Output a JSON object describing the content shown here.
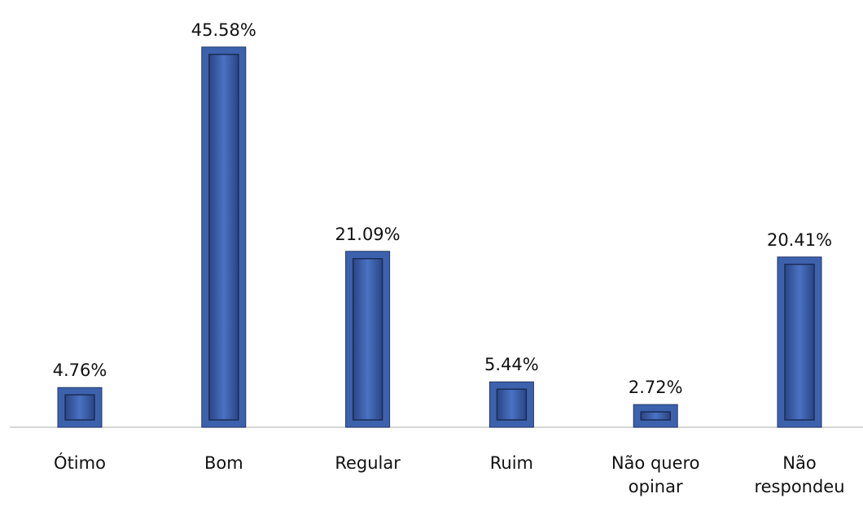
{
  "chart_data": {
    "type": "bar",
    "categories": [
      "Ótimo",
      "Bom",
      "Regular",
      "Ruim",
      "Não quero opinar",
      "Não respondeu"
    ],
    "values": [
      4.76,
      45.58,
      21.09,
      5.44,
      2.72,
      20.41
    ],
    "value_labels": [
      "4.76%",
      "45.58%",
      "21.09%",
      "5.44%",
      "2.72%",
      "20.41%"
    ],
    "color": "#3d62ad"
  }
}
